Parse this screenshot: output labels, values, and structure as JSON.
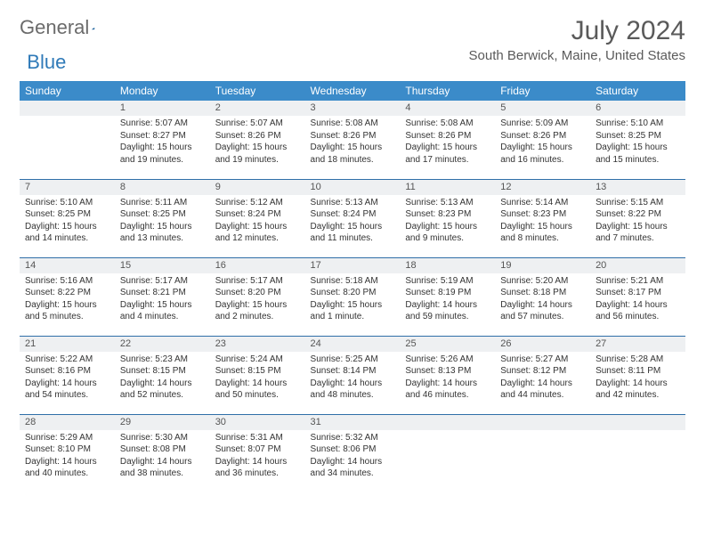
{
  "logo": {
    "text1": "General",
    "text2": "Blue"
  },
  "title": "July 2024",
  "location": "South Berwick, Maine, United States",
  "colors": {
    "header_bg": "#3b8bc9",
    "header_text": "#ffffff",
    "row_sep": "#2f6fa8",
    "daynum_bg": "#eef0f2",
    "body_text": "#333333",
    "logo_gray": "#6b6b6b",
    "logo_blue": "#2f7ab8"
  },
  "daysOfWeek": [
    "Sunday",
    "Monday",
    "Tuesday",
    "Wednesday",
    "Thursday",
    "Friday",
    "Saturday"
  ],
  "weeks": [
    [
      null,
      {
        "n": "1",
        "sr": "5:07 AM",
        "ss": "8:27 PM",
        "dl": "15 hours and 19 minutes."
      },
      {
        "n": "2",
        "sr": "5:07 AM",
        "ss": "8:26 PM",
        "dl": "15 hours and 19 minutes."
      },
      {
        "n": "3",
        "sr": "5:08 AM",
        "ss": "8:26 PM",
        "dl": "15 hours and 18 minutes."
      },
      {
        "n": "4",
        "sr": "5:08 AM",
        "ss": "8:26 PM",
        "dl": "15 hours and 17 minutes."
      },
      {
        "n": "5",
        "sr": "5:09 AM",
        "ss": "8:26 PM",
        "dl": "15 hours and 16 minutes."
      },
      {
        "n": "6",
        "sr": "5:10 AM",
        "ss": "8:25 PM",
        "dl": "15 hours and 15 minutes."
      }
    ],
    [
      {
        "n": "7",
        "sr": "5:10 AM",
        "ss": "8:25 PM",
        "dl": "15 hours and 14 minutes."
      },
      {
        "n": "8",
        "sr": "5:11 AM",
        "ss": "8:25 PM",
        "dl": "15 hours and 13 minutes."
      },
      {
        "n": "9",
        "sr": "5:12 AM",
        "ss": "8:24 PM",
        "dl": "15 hours and 12 minutes."
      },
      {
        "n": "10",
        "sr": "5:13 AM",
        "ss": "8:24 PM",
        "dl": "15 hours and 11 minutes."
      },
      {
        "n": "11",
        "sr": "5:13 AM",
        "ss": "8:23 PM",
        "dl": "15 hours and 9 minutes."
      },
      {
        "n": "12",
        "sr": "5:14 AM",
        "ss": "8:23 PM",
        "dl": "15 hours and 8 minutes."
      },
      {
        "n": "13",
        "sr": "5:15 AM",
        "ss": "8:22 PM",
        "dl": "15 hours and 7 minutes."
      }
    ],
    [
      {
        "n": "14",
        "sr": "5:16 AM",
        "ss": "8:22 PM",
        "dl": "15 hours and 5 minutes."
      },
      {
        "n": "15",
        "sr": "5:17 AM",
        "ss": "8:21 PM",
        "dl": "15 hours and 4 minutes."
      },
      {
        "n": "16",
        "sr": "5:17 AM",
        "ss": "8:20 PM",
        "dl": "15 hours and 2 minutes."
      },
      {
        "n": "17",
        "sr": "5:18 AM",
        "ss": "8:20 PM",
        "dl": "15 hours and 1 minute."
      },
      {
        "n": "18",
        "sr": "5:19 AM",
        "ss": "8:19 PM",
        "dl": "14 hours and 59 minutes."
      },
      {
        "n": "19",
        "sr": "5:20 AM",
        "ss": "8:18 PM",
        "dl": "14 hours and 57 minutes."
      },
      {
        "n": "20",
        "sr": "5:21 AM",
        "ss": "8:17 PM",
        "dl": "14 hours and 56 minutes."
      }
    ],
    [
      {
        "n": "21",
        "sr": "5:22 AM",
        "ss": "8:16 PM",
        "dl": "14 hours and 54 minutes."
      },
      {
        "n": "22",
        "sr": "5:23 AM",
        "ss": "8:15 PM",
        "dl": "14 hours and 52 minutes."
      },
      {
        "n": "23",
        "sr": "5:24 AM",
        "ss": "8:15 PM",
        "dl": "14 hours and 50 minutes."
      },
      {
        "n": "24",
        "sr": "5:25 AM",
        "ss": "8:14 PM",
        "dl": "14 hours and 48 minutes."
      },
      {
        "n": "25",
        "sr": "5:26 AM",
        "ss": "8:13 PM",
        "dl": "14 hours and 46 minutes."
      },
      {
        "n": "26",
        "sr": "5:27 AM",
        "ss": "8:12 PM",
        "dl": "14 hours and 44 minutes."
      },
      {
        "n": "27",
        "sr": "5:28 AM",
        "ss": "8:11 PM",
        "dl": "14 hours and 42 minutes."
      }
    ],
    [
      {
        "n": "28",
        "sr": "5:29 AM",
        "ss": "8:10 PM",
        "dl": "14 hours and 40 minutes."
      },
      {
        "n": "29",
        "sr": "5:30 AM",
        "ss": "8:08 PM",
        "dl": "14 hours and 38 minutes."
      },
      {
        "n": "30",
        "sr": "5:31 AM",
        "ss": "8:07 PM",
        "dl": "14 hours and 36 minutes."
      },
      {
        "n": "31",
        "sr": "5:32 AM",
        "ss": "8:06 PM",
        "dl": "14 hours and 34 minutes."
      },
      null,
      null,
      null
    ]
  ],
  "labels": {
    "sunrise": "Sunrise:",
    "sunset": "Sunset:",
    "daylight": "Daylight:"
  }
}
